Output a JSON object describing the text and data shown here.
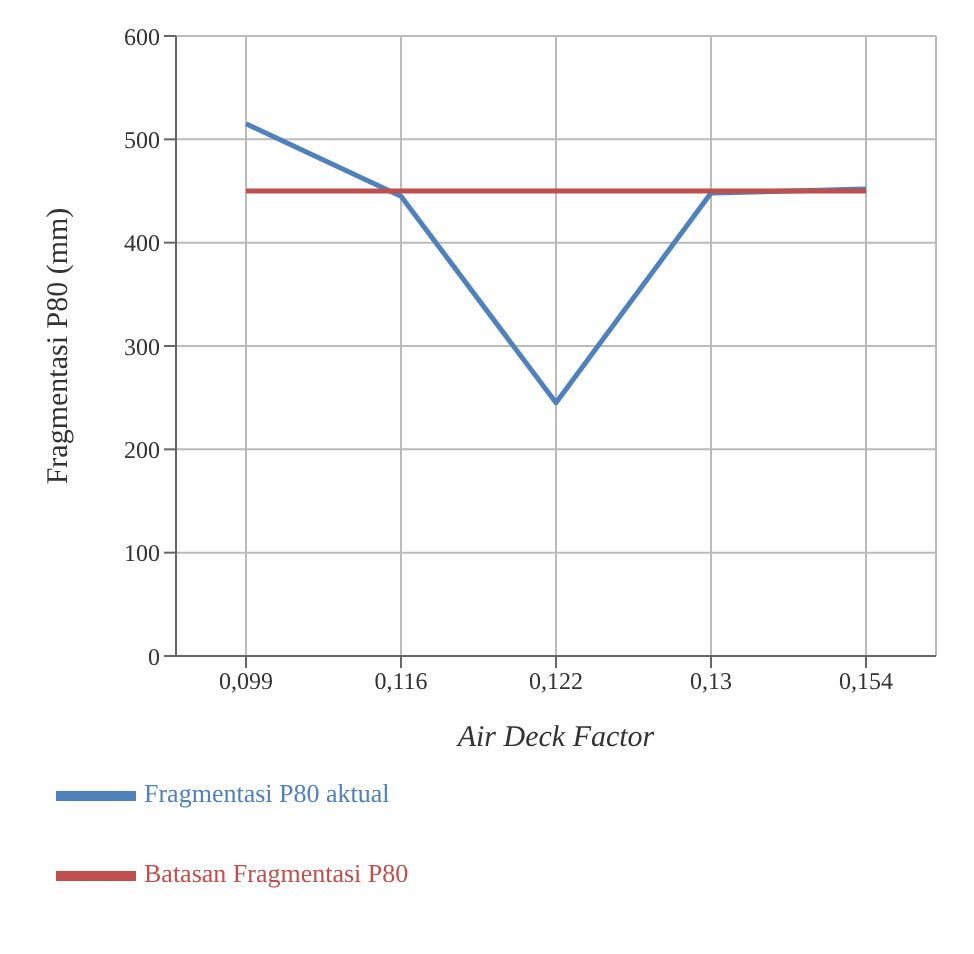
{
  "chart_data": {
    "type": "line",
    "xlabel": "Air Deck Factor",
    "ylabel": "Fragmentasi P80 (mm)",
    "categories": [
      "0,099",
      "0,116",
      "0,122",
      "0,13",
      "0,154"
    ],
    "series": [
      {
        "name": "Fragmentasi P80 aktual",
        "color": "#4f81bd",
        "values": [
          515,
          445,
          245,
          448,
          452
        ]
      },
      {
        "name": "Batasan Fragmentasi P80",
        "color": "#c0504d",
        "values": [
          450,
          450,
          450,
          450,
          450
        ]
      }
    ],
    "ylim": [
      0,
      600
    ],
    "yticks": [
      0,
      100,
      200,
      300,
      400,
      500,
      600
    ],
    "grid": true,
    "legend": "bottom left",
    "marker": "none",
    "line_style": "solid"
  }
}
